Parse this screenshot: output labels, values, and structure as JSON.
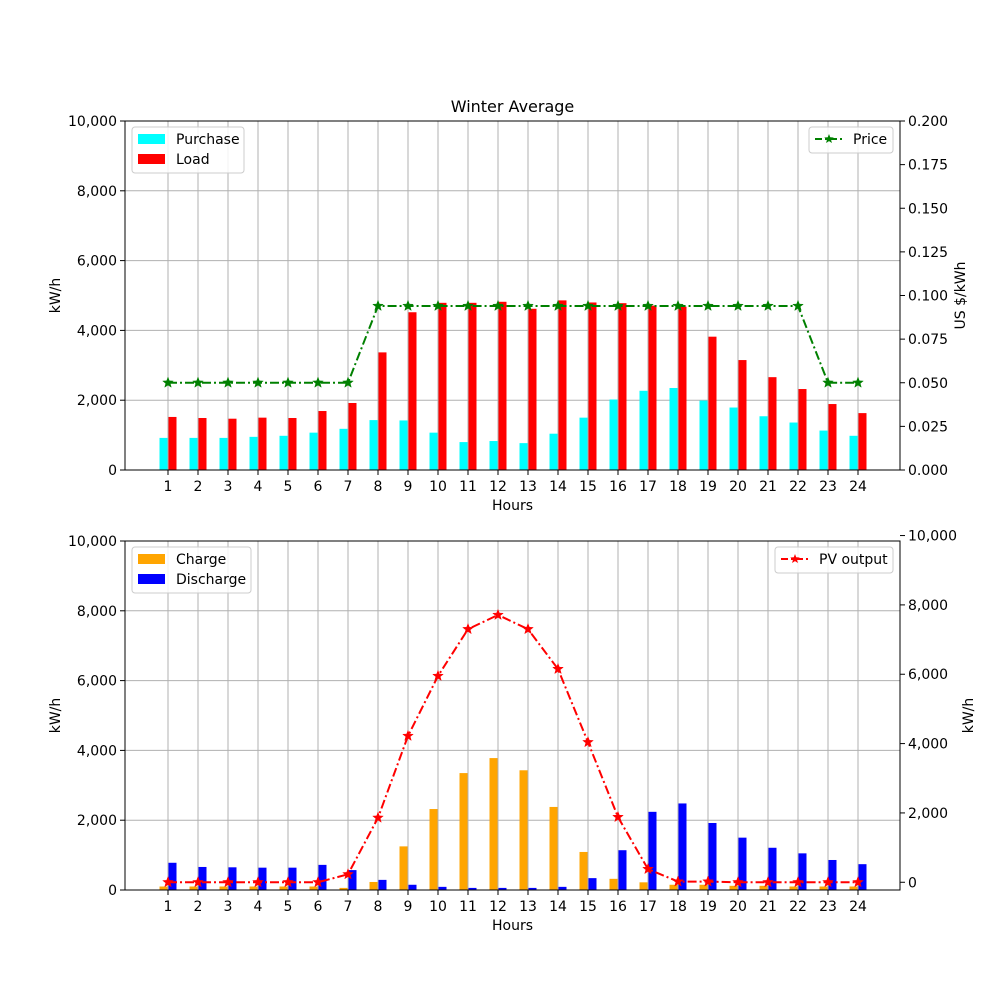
{
  "chart_data": [
    {
      "type": "bar",
      "title": "Winter Average",
      "xlabel": "Hours",
      "ylabel": "kW/h",
      "ylabel_right": "US $/kWh",
      "categories": [
        "1",
        "2",
        "3",
        "4",
        "5",
        "6",
        "7",
        "8",
        "9",
        "10",
        "11",
        "12",
        "13",
        "14",
        "15",
        "16",
        "17",
        "18",
        "19",
        "20",
        "21",
        "22",
        "23",
        "24"
      ],
      "ylim": [
        0,
        10000
      ],
      "ylim_right": [
        0,
        0.2
      ],
      "yticks": [
        "0",
        "2,000",
        "4,000",
        "6,000",
        "8,000",
        "10,000"
      ],
      "yticks_right": [
        "0.000",
        "0.025",
        "0.050",
        "0.075",
        "0.100",
        "0.125",
        "0.150",
        "0.175",
        "0.200"
      ],
      "grid": true,
      "legend_left": "top-left",
      "legend_right": "top-right",
      "series": [
        {
          "name": "Purchase",
          "kind": "bar",
          "color": "#00ffff",
          "values": [
            920,
            920,
            920,
            950,
            980,
            1070,
            1180,
            1430,
            1420,
            1070,
            800,
            830,
            770,
            1040,
            1500,
            2020,
            2270,
            2350,
            1990,
            1790,
            1540,
            1360,
            1130,
            980
          ]
        },
        {
          "name": "Load",
          "kind": "bar",
          "color": "#ff0000",
          "values": [
            1520,
            1490,
            1470,
            1500,
            1490,
            1690,
            1920,
            3370,
            4520,
            4790,
            4790,
            4820,
            4620,
            4860,
            4800,
            4780,
            4710,
            4680,
            3820,
            3150,
            2660,
            2320,
            1890,
            1630
          ]
        },
        {
          "name": "Price",
          "kind": "line",
          "axis": "right",
          "color": "#008000",
          "values": [
            0.05,
            0.05,
            0.05,
            0.05,
            0.05,
            0.05,
            0.05,
            0.094,
            0.094,
            0.094,
            0.094,
            0.094,
            0.094,
            0.094,
            0.094,
            0.094,
            0.094,
            0.094,
            0.094,
            0.094,
            0.094,
            0.094,
            0.05,
            0.05
          ]
        }
      ]
    },
    {
      "type": "bar",
      "title": "",
      "xlabel": "Hours",
      "ylabel": "kW/h",
      "ylabel_right": "kW/h",
      "categories": [
        "1",
        "2",
        "3",
        "4",
        "5",
        "6",
        "7",
        "8",
        "9",
        "10",
        "11",
        "12",
        "13",
        "14",
        "15",
        "16",
        "17",
        "18",
        "19",
        "20",
        "21",
        "22",
        "23",
        "24"
      ],
      "ylim": [
        0,
        10000
      ],
      "ylim_right": [
        -223,
        9843
      ],
      "yticks": [
        "0",
        "2,000",
        "4,000",
        "6,000",
        "8,000",
        "10,000"
      ],
      "yticks_right": [
        "0",
        "2,000",
        "4,000",
        "6,000",
        "8,000",
        "10,000"
      ],
      "grid": true,
      "legend_left": "top-left",
      "legend_right": "top-right",
      "series": [
        {
          "name": "Charge",
          "kind": "bar",
          "color": "#ffa500",
          "values": [
            100,
            100,
            100,
            100,
            100,
            100,
            60,
            230,
            1250,
            2320,
            3350,
            3780,
            3430,
            2380,
            1090,
            320,
            220,
            150,
            150,
            120,
            120,
            100,
            100,
            100
          ]
        },
        {
          "name": "Discharge",
          "kind": "bar",
          "color": "#0000ff",
          "values": [
            780,
            660,
            650,
            640,
            640,
            720,
            570,
            290,
            150,
            90,
            60,
            60,
            60,
            90,
            340,
            1140,
            2240,
            2480,
            1920,
            1500,
            1210,
            1050,
            860,
            740
          ]
        },
        {
          "name": "PV output",
          "kind": "line",
          "axis": "right",
          "color": "#ff0000",
          "values": [
            0,
            0,
            0,
            0,
            0,
            0,
            230,
            1860,
            4220,
            5950,
            7300,
            7710,
            7300,
            6150,
            4040,
            1880,
            380,
            20,
            20,
            0,
            0,
            0,
            0,
            0
          ]
        }
      ]
    }
  ]
}
